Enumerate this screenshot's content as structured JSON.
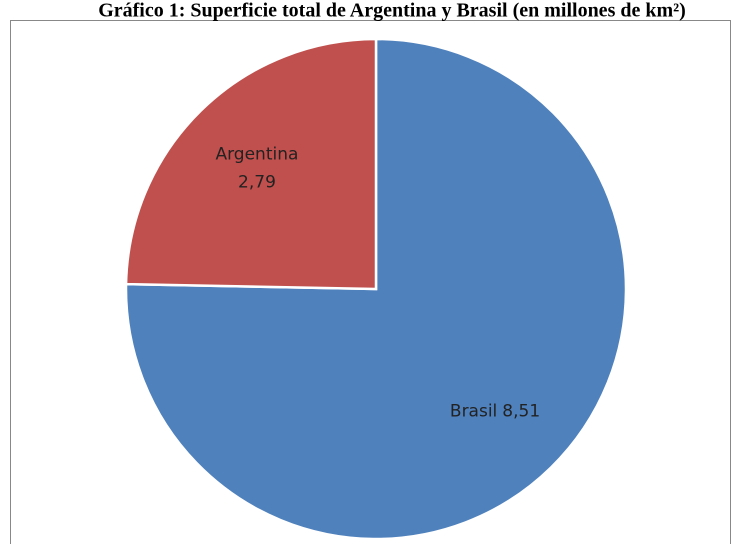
{
  "chart_data": {
    "type": "pie",
    "title": "Gráfico 1: Superficie total de Argentina y Brasil (en millones de km²)",
    "categories": [
      "Brasil",
      "Argentina"
    ],
    "values": [
      8.51,
      2.79
    ],
    "value_labels": [
      "8,51",
      "2,79"
    ],
    "colors": [
      "#4f81bd",
      "#c0504d"
    ]
  }
}
